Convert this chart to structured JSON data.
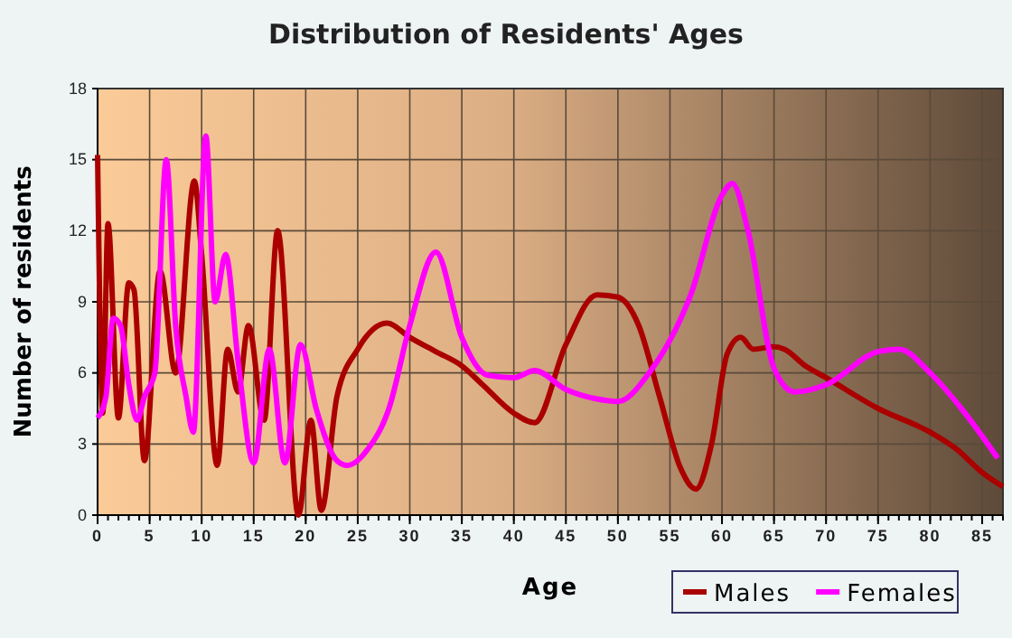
{
  "chart_data": {
    "type": "line",
    "title": "Distribution of Residents' Ages",
    "xlabel": "Age",
    "ylabel": "Number of residents",
    "xlim": [
      0,
      87
    ],
    "xticks": [
      0,
      5,
      10,
      15,
      20,
      25,
      30,
      35,
      40,
      45,
      50,
      55,
      60,
      65,
      70,
      75,
      80,
      85
    ],
    "ylim": [
      0,
      18
    ],
    "yticks": [
      0,
      3,
      6,
      9,
      12,
      15,
      18
    ],
    "grid": true,
    "legend": "bottom right",
    "marker": "none",
    "line_style": "solid",
    "series": [
      {
        "name": "Males",
        "color": "#aa0000",
        "x": [
          0,
          0.5,
          1,
          2,
          3,
          3.5,
          4.5,
          6,
          7.5,
          9.3,
          10,
          11.5,
          12.5,
          13.5,
          14.5,
          16,
          17.3,
          19.3,
          20.5,
          21.5,
          23,
          25,
          27.8,
          30,
          32.5,
          35,
          37,
          40,
          42,
          45,
          48,
          50,
          52,
          54,
          56,
          57.5,
          59,
          60.5,
          61.8,
          63,
          65,
          66,
          68,
          70,
          75,
          80,
          82.5,
          85,
          87
        ],
        "values": [
          15.2,
          4.3,
          12.3,
          4.1,
          9.8,
          9.5,
          2.3,
          10.3,
          6,
          14.1,
          11,
          2.1,
          7,
          5.2,
          8,
          4,
          12,
          0,
          4,
          0.2,
          5,
          7,
          8.1,
          7.5,
          6.9,
          6.3,
          5.5,
          4.3,
          3.9,
          7.2,
          9.3,
          9.2,
          8,
          5,
          2,
          1.1,
          3,
          6.8,
          7.5,
          7,
          7.1,
          7,
          6.3,
          5.8,
          4.5,
          3.5,
          2.8,
          1.8,
          1.2
        ]
      },
      {
        "name": "Females",
        "color": "#ff00ff",
        "x": [
          0,
          0.8,
          1.5,
          2.2,
          3,
          3.8,
          4.5,
          5.5,
          6.6,
          7.5,
          8.5,
          9.2,
          10.4,
          11.3,
          12.3,
          13.5,
          15,
          16.5,
          18,
          19.5,
          21,
          23,
          24,
          26,
          28,
          30,
          32.5,
          35,
          37.5,
          40,
          42,
          45,
          48,
          50,
          53,
          57,
          60,
          61,
          62.5,
          65,
          67,
          70,
          75,
          77,
          80,
          83,
          86.5
        ],
        "values": [
          4.1,
          5,
          8.3,
          8,
          5.5,
          4,
          5,
          6,
          15,
          8,
          5,
          3.5,
          16,
          9,
          11,
          6.5,
          2.2,
          7,
          2.2,
          7.2,
          4.5,
          2.3,
          2.1,
          2.8,
          4.5,
          8,
          11.1,
          7.5,
          5.9,
          5.8,
          6.1,
          5.3,
          4.9,
          4.8,
          6,
          9.3,
          13.5,
          14,
          12,
          6.2,
          5.2,
          5.5,
          6.9,
          7,
          6,
          4.5,
          2.4
        ]
      }
    ]
  }
}
